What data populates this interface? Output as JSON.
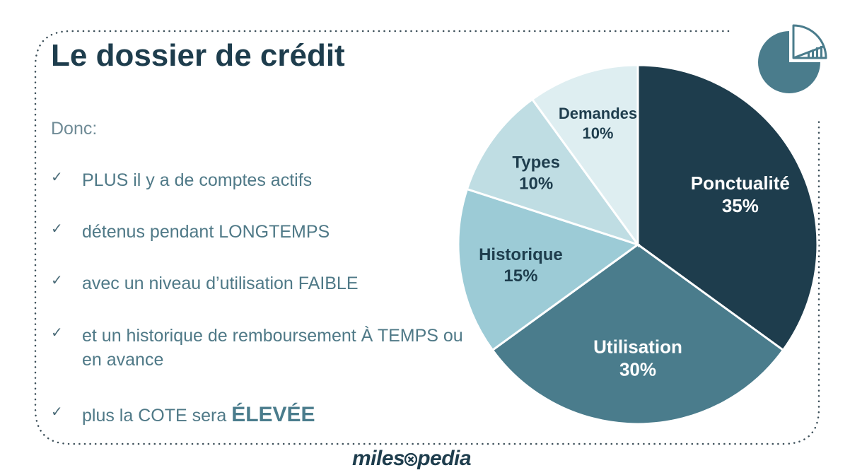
{
  "title": "Le dossier de crédit",
  "intro": "Donc:",
  "bullets": [
    {
      "text": "PLUS il y a de comptes actifs"
    },
    {
      "text": "détenus pendant LONGTEMPS"
    },
    {
      "text": "avec un niveau d’utilisation FAIBLE"
    },
    {
      "text": "et un historique de remboursement À TEMPS ou en avance"
    },
    {
      "text": "plus la COTE sera ",
      "emphasis": "ÉLEVÉE"
    }
  ],
  "chart_data": {
    "type": "pie",
    "slices": [
      {
        "label": "Ponctualité",
        "value": 35,
        "display": "35%",
        "color": "#1e3d4d",
        "text_color": "#ffffff"
      },
      {
        "label": "Utilisation",
        "value": 30,
        "display": "30%",
        "color": "#4a7c8c",
        "text_color": "#ffffff"
      },
      {
        "label": "Historique",
        "value": 15,
        "display": "15%",
        "color": "#9ccbd6",
        "text_color": "#1e3d4d"
      },
      {
        "label": "Types",
        "value": 10,
        "display": "10%",
        "color": "#bfdde3",
        "text_color": "#1e3d4d"
      },
      {
        "label": "Demandes",
        "value": 10,
        "display": "10%",
        "color": "#deeef1",
        "text_color": "#1e3d4d"
      }
    ],
    "start_angle_deg": 0,
    "direction": "clockwise"
  },
  "logo": {
    "left": "miles",
    "right": "pedia"
  },
  "icons": {
    "check": "check-icon",
    "pie": "pie-chart-icon",
    "logo_mark": "x-circle-icon"
  },
  "colors": {
    "primary": "#1e3d4d",
    "accent": "#4a7c8c",
    "text": "#4f7987",
    "dots": "#3c4f59"
  }
}
